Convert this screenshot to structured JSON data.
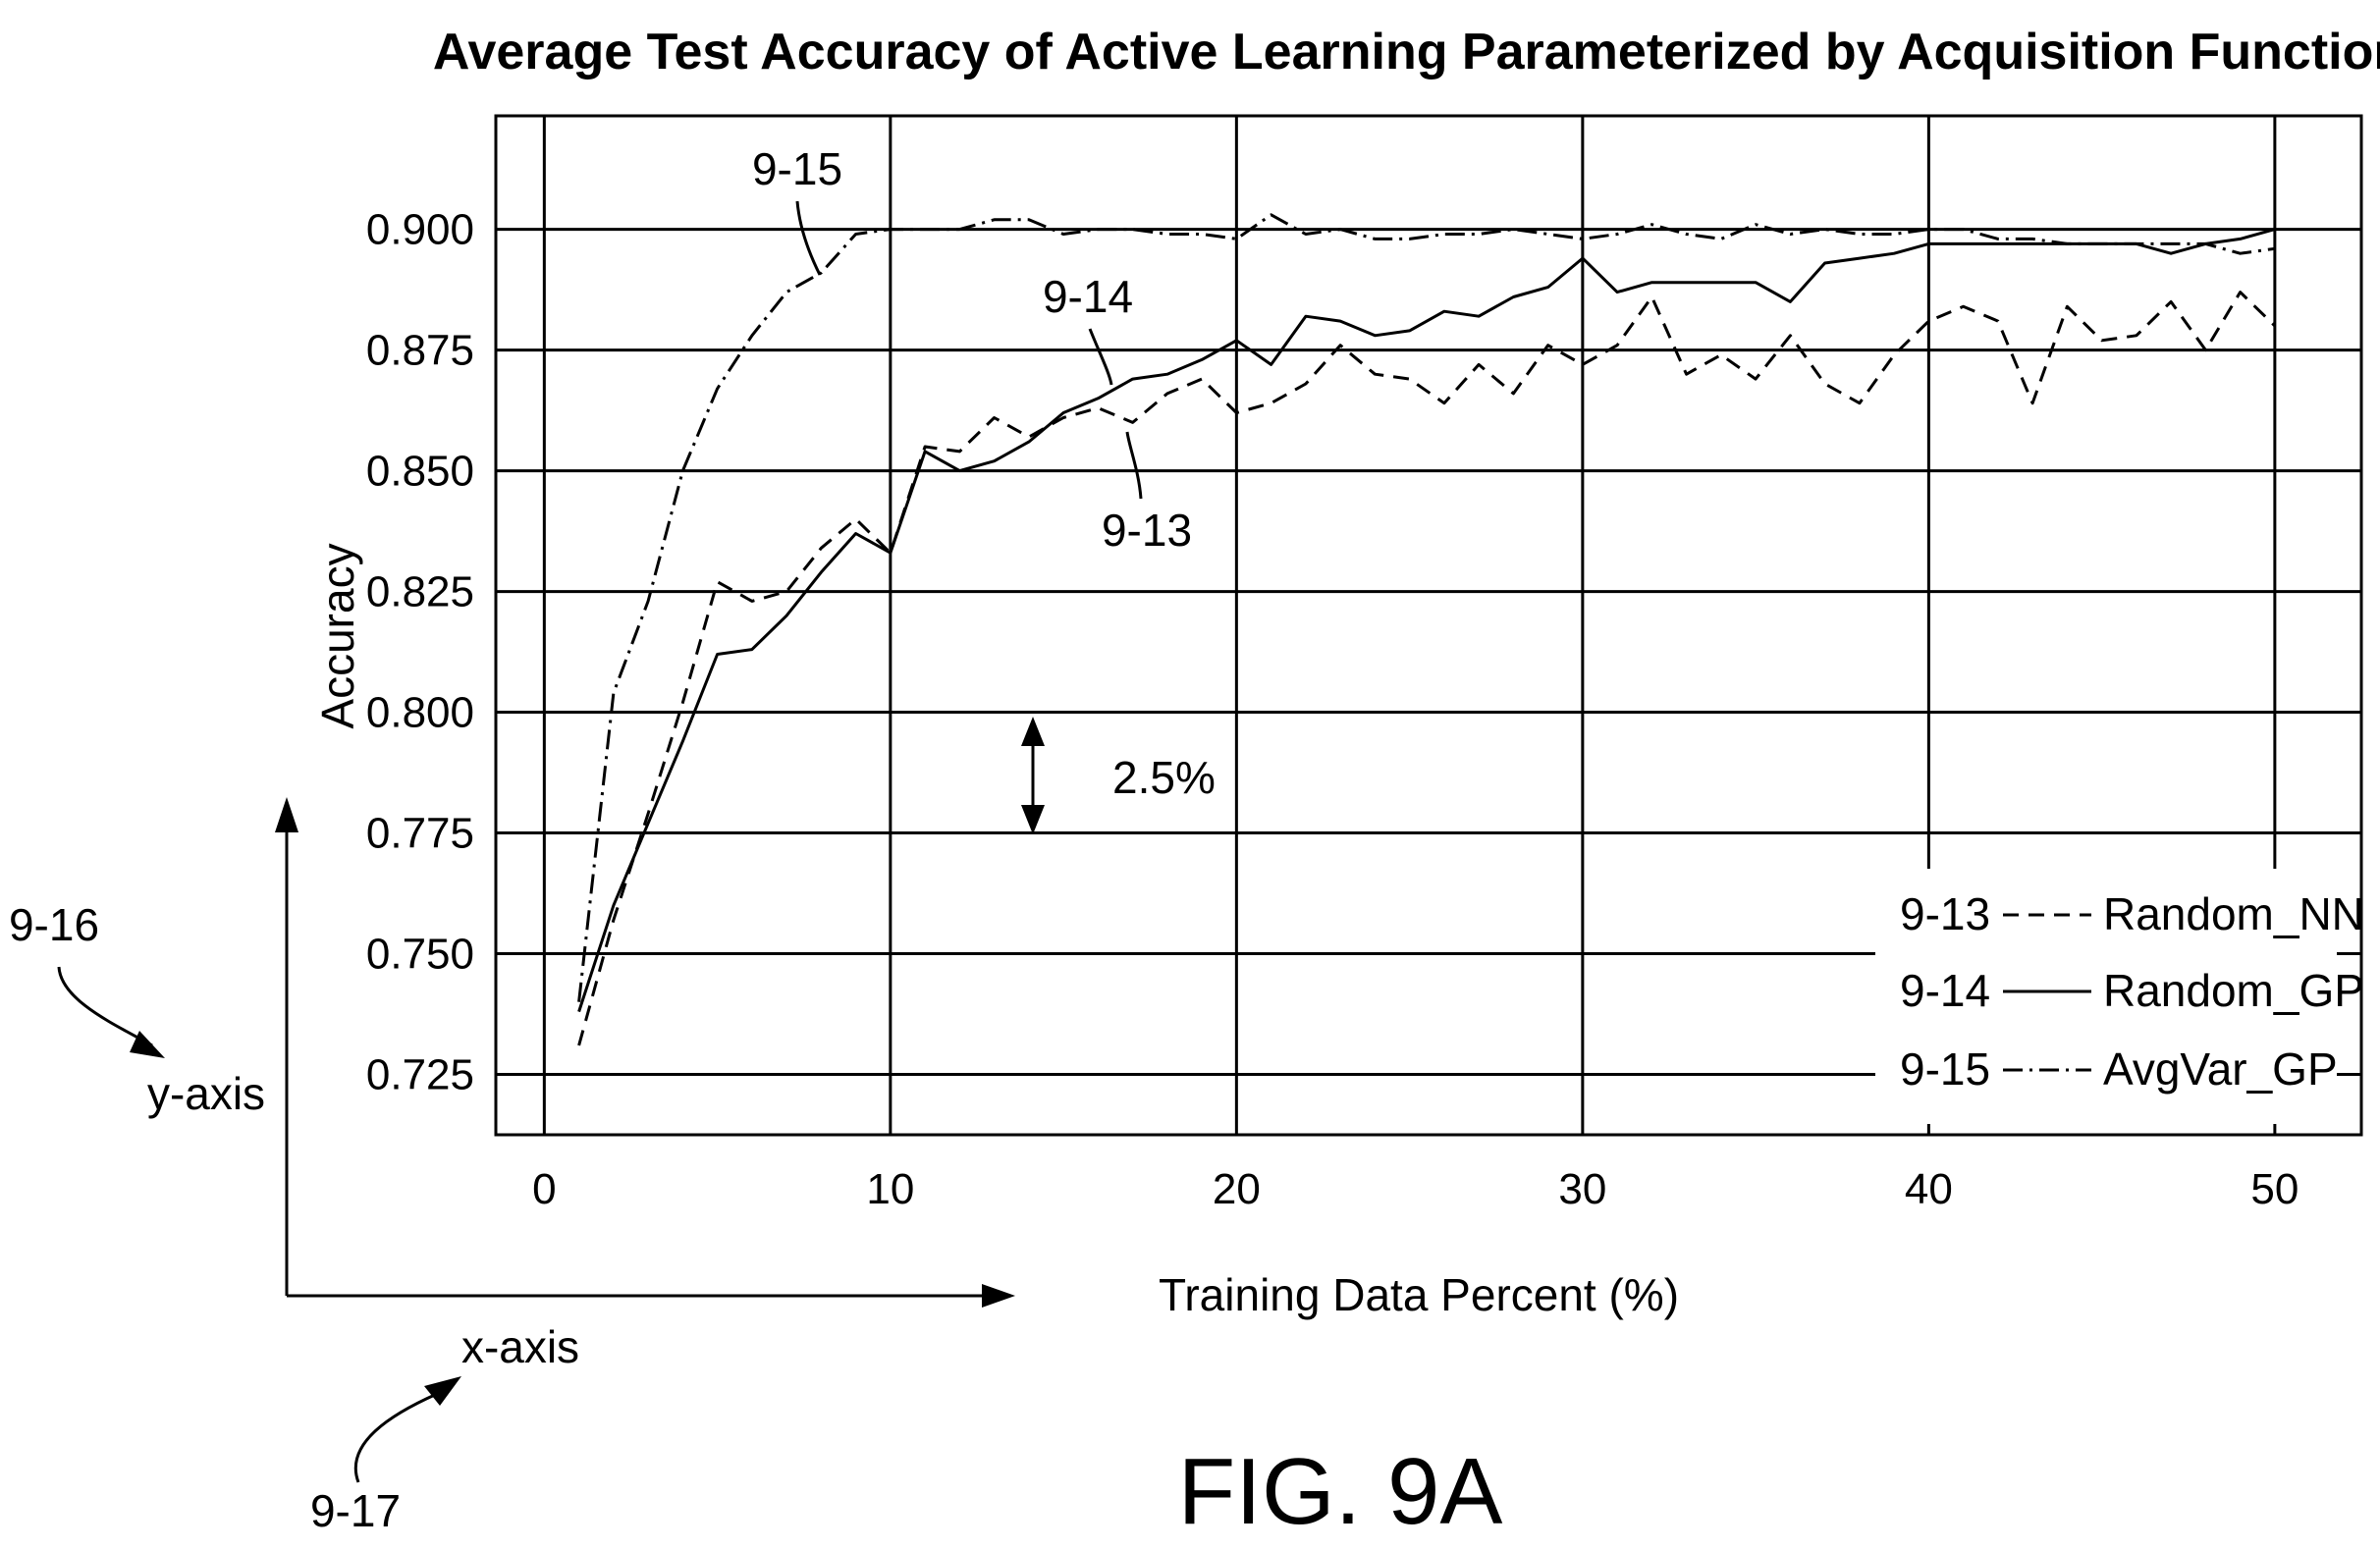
{
  "chart_data": {
    "type": "line",
    "title": "Average Test Accuracy of Active Learning Parameterized by Acquisition Function",
    "xlabel": "Training Data Percent (%)",
    "ylabel": "Accuracy",
    "xlim": [
      -1.4,
      52.5
    ],
    "ylim": [
      0.7125,
      0.9235
    ],
    "xticks": [
      0,
      10,
      20,
      30,
      40,
      50
    ],
    "yticks": [
      0.725,
      0.75,
      0.775,
      0.8,
      0.825,
      0.85,
      0.875,
      0.9
    ],
    "xtick_labels": [
      "0",
      "10",
      "20",
      "30",
      "40",
      "50"
    ],
    "ytick_labels": [
      "0.725",
      "0.750",
      "0.775",
      "0.800",
      "0.825",
      "0.850",
      "0.875",
      "0.900"
    ],
    "grid": true,
    "legend_position": "bottom-right",
    "series": [
      {
        "name": "Random_NN",
        "ref": "9-13",
        "style": "dashed",
        "x": [
          1,
          2,
          3,
          4,
          5,
          6,
          7,
          8,
          9,
          10,
          11,
          12,
          13,
          14,
          15,
          16,
          17,
          18,
          19,
          20,
          21,
          22,
          23,
          24,
          25,
          26,
          27,
          28,
          29,
          30,
          31,
          32,
          33,
          34,
          35,
          36,
          37,
          38,
          39,
          40,
          41,
          42,
          43,
          44,
          45,
          46,
          47,
          48,
          49,
          50
        ],
        "values": [
          0.731,
          0.757,
          0.779,
          0.802,
          0.827,
          0.823,
          0.825,
          0.834,
          0.84,
          0.833,
          0.855,
          0.854,
          0.861,
          0.857,
          0.861,
          0.863,
          0.86,
          0.866,
          0.869,
          0.862,
          0.864,
          0.868,
          0.876,
          0.87,
          0.869,
          0.864,
          0.872,
          0.866,
          0.876,
          0.872,
          0.876,
          0.886,
          0.87,
          0.874,
          0.869,
          0.878,
          0.868,
          0.864,
          0.874,
          0.881,
          0.884,
          0.881,
          0.864,
          0.884,
          0.877,
          0.878,
          0.885,
          0.875,
          0.887,
          0.88
        ]
      },
      {
        "name": "Random_GP",
        "ref": "9-14",
        "style": "solid",
        "x": [
          1,
          2,
          3,
          4,
          5,
          6,
          7,
          8,
          9,
          10,
          11,
          12,
          13,
          14,
          15,
          16,
          17,
          18,
          19,
          20,
          21,
          22,
          23,
          24,
          25,
          26,
          27,
          28,
          29,
          30,
          31,
          32,
          33,
          34,
          35,
          36,
          37,
          38,
          39,
          40,
          41,
          42,
          43,
          44,
          45,
          46,
          47,
          48,
          49,
          50
        ],
        "values": [
          0.738,
          0.76,
          0.777,
          0.794,
          0.812,
          0.813,
          0.82,
          0.829,
          0.837,
          0.833,
          0.854,
          0.85,
          0.852,
          0.856,
          0.862,
          0.865,
          0.869,
          0.87,
          0.873,
          0.877,
          0.872,
          0.882,
          0.881,
          0.878,
          0.879,
          0.883,
          0.882,
          0.886,
          0.888,
          0.894,
          0.887,
          0.889,
          0.889,
          0.889,
          0.889,
          0.885,
          0.893,
          0.894,
          0.895,
          0.897,
          0.897,
          0.897,
          0.897,
          0.897,
          0.897,
          0.897,
          0.895,
          0.897,
          0.898,
          0.9
        ]
      },
      {
        "name": "AvgVar_GP",
        "ref": "9-15",
        "style": "dashdot",
        "x": [
          1,
          2,
          3,
          4,
          5,
          6,
          7,
          8,
          9,
          10,
          11,
          12,
          13,
          14,
          15,
          16,
          17,
          18,
          19,
          20,
          21,
          22,
          23,
          24,
          25,
          26,
          27,
          28,
          29,
          30,
          31,
          32,
          33,
          34,
          35,
          36,
          37,
          38,
          39,
          40,
          41,
          42,
          43,
          44,
          45,
          46,
          47,
          48,
          49,
          50
        ],
        "values": [
          0.74,
          0.804,
          0.823,
          0.85,
          0.867,
          0.878,
          0.887,
          0.891,
          0.899,
          0.9,
          0.9,
          0.9,
          0.902,
          0.902,
          0.899,
          0.9,
          0.9,
          0.899,
          0.899,
          0.898,
          0.903,
          0.899,
          0.9,
          0.898,
          0.898,
          0.899,
          0.899,
          0.9,
          0.899,
          0.898,
          0.899,
          0.901,
          0.899,
          0.898,
          0.901,
          0.899,
          0.9,
          0.899,
          0.899,
          0.9,
          0.9,
          0.898,
          0.898,
          0.897,
          0.897,
          0.897,
          0.897,
          0.897,
          0.895,
          0.896
        ]
      }
    ]
  },
  "annotations": {
    "ref_9_15": "9-15",
    "ref_9_14": "9-14",
    "ref_9_13": "9-13",
    "span_label": "2.5%",
    "ref_9_16": "9-16",
    "y_axis_label": "y-axis",
    "ref_9_17": "9-17",
    "x_axis_label": "x-axis",
    "figure_label": "FIG. 9A"
  },
  "legend": [
    {
      "ref": "9-13",
      "label": "Random_NN"
    },
    {
      "ref": "9-14",
      "label": "Random_GP"
    },
    {
      "ref": "9-15",
      "label": "AvgVar_GP"
    }
  ]
}
